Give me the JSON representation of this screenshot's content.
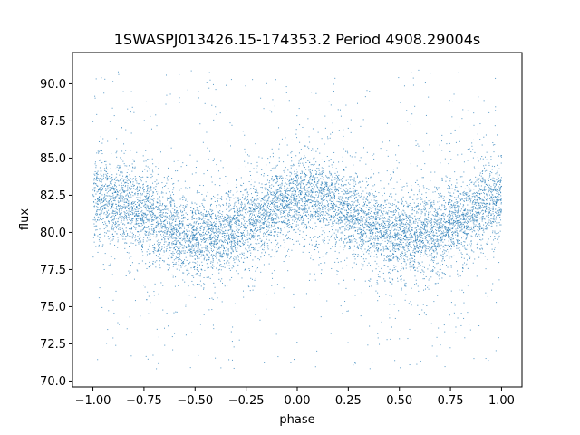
{
  "chart_data": {
    "type": "scatter",
    "title": "1SWASPJ013426.15-174353.2 Period 4908.29004s",
    "xlabel": "phase",
    "ylabel": "flux",
    "xlim": [
      -1.1,
      1.1
    ],
    "ylim": [
      69.6,
      92.1
    ],
    "xticks": [
      -1.0,
      -0.75,
      -0.5,
      -0.25,
      0.0,
      0.25,
      0.5,
      0.75,
      1.0
    ],
    "xtick_labels": [
      "−1.00",
      "−0.75",
      "−0.50",
      "−0.25",
      "0.00",
      "0.25",
      "0.50",
      "0.75",
      "1.00"
    ],
    "yticks": [
      70.0,
      72.5,
      75.0,
      77.5,
      80.0,
      82.5,
      85.0,
      87.5,
      90.0
    ],
    "ytick_labels": [
      "70.0",
      "72.5",
      "75.0",
      "77.5",
      "80.0",
      "82.5",
      "85.0",
      "87.5",
      "90.0"
    ],
    "grid": false,
    "point_color": "#1f77b4",
    "series": [
      {
        "phase_range": [
          -1.0,
          1.0
        ],
        "flux_range": [
          70.8,
          91.0
        ],
        "trend": {
          "mean_flux": 81.0,
          "amplitude": 1.3,
          "peak_phases": [
            -0.95,
            0.05
          ],
          "trough_phases": [
            -0.35,
            0.65
          ],
          "core_scatter": 1.3
        }
      }
    ]
  }
}
